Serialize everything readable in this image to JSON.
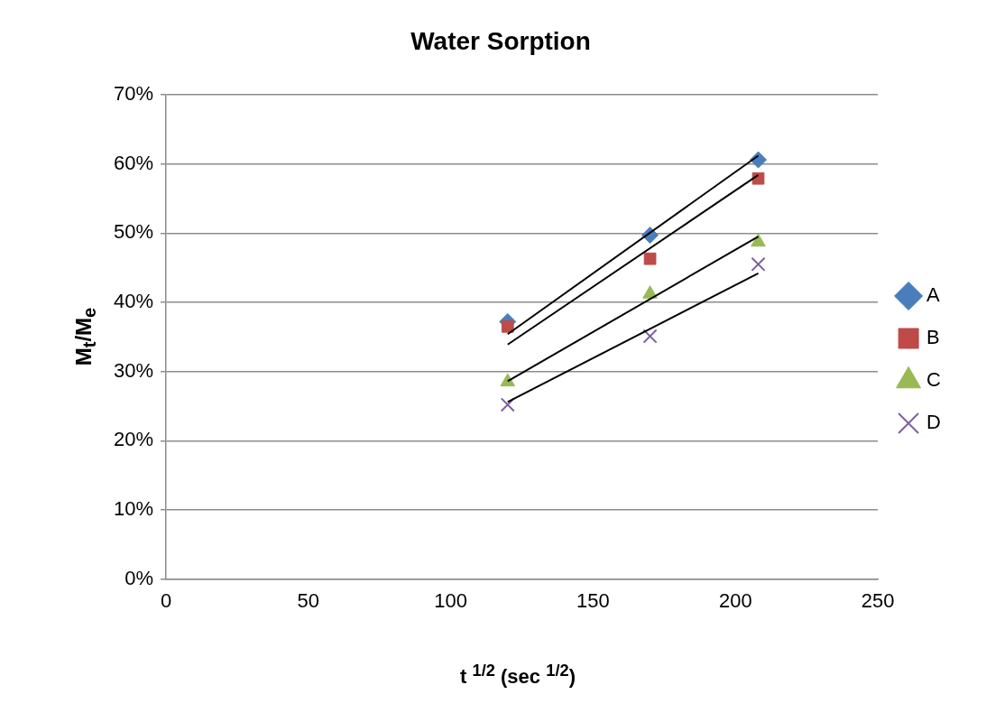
{
  "chart_data": {
    "type": "scatter",
    "title": "Water Sorption",
    "xlabel": "t $^{1/2}$ (sec $^{1/2}$)",
    "ylabel": "M$_{t}$/M$_{e}$",
    "x": [
      120,
      170,
      208
    ],
    "series": [
      {
        "name": "A",
        "color": "#4a7ebb",
        "marker": "diamond",
        "values": [
          37.2,
          49.7,
          60.6
        ]
      },
      {
        "name": "B",
        "color": "#be4b48",
        "marker": "square",
        "values": [
          36.5,
          46.3,
          57.9
        ]
      },
      {
        "name": "C",
        "color": "#98b954",
        "marker": "triangle",
        "values": [
          28.5,
          41.2,
          48.7
        ]
      },
      {
        "name": "D",
        "color": "#7d60a0",
        "marker": "cross",
        "values": [
          25.2,
          35.1,
          45.5
        ]
      },
      {
        "type": "line",
        "color": "#000000",
        "marker": "none",
        "values": [
          35.4,
          null,
          61.2
        ]
      },
      {
        "type": "line",
        "color": "#000000",
        "marker": "none",
        "values": [
          33.9,
          null,
          58.4
        ]
      },
      {
        "type": "line",
        "color": "#000000",
        "marker": "none",
        "values": [
          28.6,
          null,
          49.5
        ]
      },
      {
        "type": "line",
        "color": "#000000",
        "marker": "none",
        "values": [
          25.6,
          null,
          44.2
        ]
      }
    ],
    "xlim": [
      0,
      250
    ],
    "xticks": [
      0,
      50,
      100,
      150,
      200,
      250
    ],
    "ylim": [
      0,
      70
    ],
    "yticks": [
      {
        "value": 0,
        "label": "0%"
      },
      {
        "value": 10,
        "label": "10%"
      },
      {
        "value": 20,
        "label": "20%"
      },
      {
        "value": 30,
        "label": "30%"
      },
      {
        "value": 40,
        "label": "40%"
      },
      {
        "value": 50,
        "label": "50%"
      },
      {
        "value": 60,
        "label": "60%"
      },
      {
        "value": 70,
        "label": "70%"
      }
    ],
    "grid": "y",
    "legend": "right"
  }
}
